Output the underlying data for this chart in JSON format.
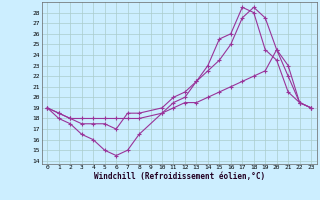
{
  "xlabel": "Windchill (Refroidissement éolien,°C)",
  "xlim": [
    -0.5,
    23.5
  ],
  "ylim": [
    13.7,
    29.0
  ],
  "yticks": [
    14,
    15,
    16,
    17,
    18,
    19,
    20,
    21,
    22,
    23,
    24,
    25,
    26,
    27,
    28
  ],
  "xticks": [
    0,
    1,
    2,
    3,
    4,
    5,
    6,
    7,
    8,
    9,
    10,
    11,
    12,
    13,
    14,
    15,
    16,
    17,
    18,
    19,
    20,
    21,
    22,
    23
  ],
  "bg_color": "#cceeff",
  "grid_color": "#aacccc",
  "line_color": "#993399",
  "line1_x": [
    0,
    1,
    2,
    3,
    4,
    5,
    6,
    7,
    8,
    10,
    11,
    12,
    13,
    14,
    15,
    16,
    17,
    18,
    19,
    20,
    21,
    22,
    23
  ],
  "line1_y": [
    19.0,
    18.0,
    17.5,
    16.5,
    16.0,
    15.0,
    14.5,
    15.0,
    16.5,
    18.5,
    19.5,
    20.0,
    21.5,
    23.0,
    25.5,
    26.0,
    28.5,
    28.0,
    24.5,
    23.5,
    20.5,
    19.5,
    19.0
  ],
  "line2_x": [
    0,
    1,
    2,
    3,
    4,
    5,
    6,
    7,
    8,
    10,
    11,
    12,
    13,
    14,
    15,
    16,
    17,
    18,
    19,
    20,
    21,
    22,
    23
  ],
  "line2_y": [
    19.0,
    18.5,
    18.0,
    17.5,
    17.5,
    17.5,
    17.0,
    18.5,
    18.5,
    19.0,
    20.0,
    20.5,
    21.5,
    22.5,
    23.5,
    25.0,
    27.5,
    28.5,
    27.5,
    24.5,
    22.0,
    19.5,
    19.0
  ],
  "line3_x": [
    0,
    1,
    2,
    3,
    4,
    5,
    6,
    7,
    8,
    10,
    11,
    12,
    13,
    14,
    15,
    16,
    17,
    18,
    19,
    20,
    21,
    22,
    23
  ],
  "line3_y": [
    19.0,
    18.5,
    18.0,
    18.0,
    18.0,
    18.0,
    18.0,
    18.0,
    18.0,
    18.5,
    19.0,
    19.5,
    19.5,
    20.0,
    20.5,
    21.0,
    21.5,
    22.0,
    22.5,
    24.5,
    23.0,
    19.5,
    19.0
  ]
}
